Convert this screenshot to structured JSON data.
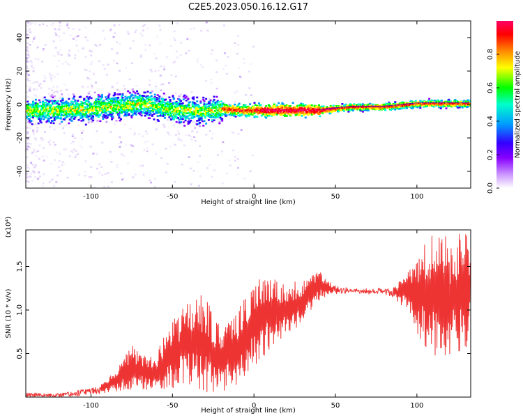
{
  "title": "C2E5.2023.050.16.12.G17",
  "colors": {
    "snr_line": "#ee3333",
    "ridge_dark": "#5500aa",
    "colormap": [
      "#ffffff",
      "#cc99ff",
      "#8800ff",
      "#3300ff",
      "#0099ff",
      "#00ffcc",
      "#00ff00",
      "#ffff00",
      "#ff8800",
      "#ff0000",
      "#ff0066"
    ]
  },
  "chart_data": [
    {
      "type": "heatmap",
      "name": "spectrogram",
      "xlabel": "Height of straight line (km)",
      "ylabel": "Frequency (Hz)",
      "xlim": [
        -140,
        133
      ],
      "ylim": [
        -50,
        50
      ],
      "xticks": [
        -100,
        -50,
        0,
        50,
        100
      ],
      "yticks": [
        -40,
        -20,
        0,
        20,
        40
      ],
      "grid": false,
      "ridge": {
        "x": [
          -140,
          -120,
          -100,
          -90,
          -80,
          -70,
          -60,
          -50,
          -40,
          -30,
          -20,
          -10,
          0,
          10,
          20,
          30,
          40,
          50,
          60,
          70,
          80,
          90,
          100,
          110,
          120,
          133
        ],
        "y": [
          -3,
          -3,
          -2,
          -1,
          0,
          1,
          -1,
          -3,
          -3,
          -4,
          -2,
          -3,
          -3,
          -3,
          -3,
          -3,
          -3,
          -2,
          -1,
          -1,
          -1,
          0,
          1,
          1,
          1,
          1
        ]
      },
      "colorbar": {
        "label": "Normalized spectral amplitude",
        "min": 0,
        "max": 1,
        "ticks": [
          "0.0",
          "0.2",
          "0.4",
          "0.6",
          "0.8"
        ]
      }
    },
    {
      "type": "line",
      "name": "snr",
      "xlabel": "Height of straight line (km)",
      "ylabel": "SNR (10 * v/v)",
      "y_multiplier": "(x10⁴)",
      "xlim": [
        -140,
        133
      ],
      "ylim": [
        0,
        1.92
      ],
      "xticks": [
        -100,
        -50,
        0,
        50,
        100
      ],
      "yticks": [
        "0.5",
        "1.0",
        "1.5"
      ],
      "envelope": {
        "x": [
          -140,
          -120,
          -100,
          -90,
          -80,
          -75,
          -70,
          -60,
          -50,
          -40,
          -30,
          -25,
          -20,
          -10,
          0,
          10,
          20,
          30,
          35,
          40,
          45,
          50,
          60,
          70,
          80,
          85,
          90,
          95,
          100,
          105,
          110,
          115,
          120,
          125,
          133
        ],
        "lo": [
          0.0,
          0.0,
          0.02,
          0.05,
          0.08,
          0.08,
          0.1,
          0.05,
          0.1,
          0.15,
          0.05,
          0.05,
          0.05,
          0.1,
          0.3,
          0.55,
          0.7,
          0.85,
          1.0,
          1.1,
          1.15,
          1.18,
          1.2,
          1.18,
          1.18,
          1.15,
          1.05,
          1.0,
          0.7,
          0.55,
          0.4,
          0.5,
          0.45,
          0.45,
          0.6
        ],
        "hi": [
          0.05,
          0.04,
          0.1,
          0.2,
          0.45,
          0.6,
          0.5,
          0.5,
          0.9,
          1.1,
          1.2,
          0.95,
          0.8,
          1.0,
          1.35,
          1.4,
          1.3,
          1.35,
          1.4,
          1.45,
          1.35,
          1.28,
          1.25,
          1.25,
          1.25,
          1.25,
          1.35,
          1.45,
          1.6,
          1.8,
          1.9,
          1.85,
          1.85,
          1.9,
          1.9
        ]
      }
    }
  ]
}
